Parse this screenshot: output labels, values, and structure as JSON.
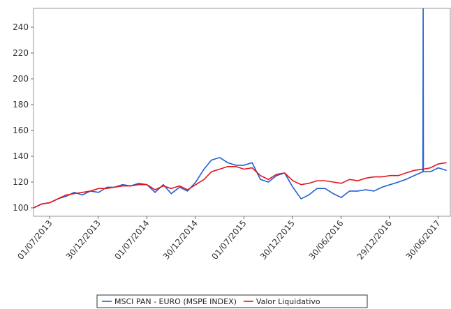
{
  "chart_data": {
    "type": "line",
    "x": [
      "01/05/2013",
      "01/06/2013",
      "01/07/2013",
      "01/08/2013",
      "01/09/2013",
      "01/10/2013",
      "01/11/2013",
      "01/12/2013",
      "01/01/2014",
      "01/02/2014",
      "01/03/2014",
      "01/04/2014",
      "01/05/2014",
      "01/06/2014",
      "01/07/2014",
      "01/08/2014",
      "01/09/2014",
      "01/10/2014",
      "01/11/2014",
      "01/12/2014",
      "01/01/2015",
      "01/02/2015",
      "01/03/2015",
      "01/04/2015",
      "01/05/2015",
      "01/06/2015",
      "01/07/2015",
      "01/08/2015",
      "01/09/2015",
      "01/10/2015",
      "01/11/2015",
      "01/12/2015",
      "01/01/2016",
      "01/02/2016",
      "01/03/2016",
      "01/04/2016",
      "01/05/2016",
      "01/06/2016",
      "01/07/2016",
      "01/08/2016",
      "01/09/2016",
      "01/10/2016",
      "01/11/2016",
      "01/12/2016",
      "01/01/2017",
      "01/02/2017",
      "01/03/2017",
      "01/04/2017",
      "04/05/2017",
      "05/05/2017",
      "06/05/2017",
      "01/06/2017",
      "01/07/2017",
      "01/08/2017"
    ],
    "series": [
      {
        "name": "MSCI PAN - EURO (MSPE INDEX)",
        "color": "#1f5fd6",
        "values": [
          100,
          103,
          104,
          107,
          109,
          112,
          110,
          113,
          112,
          116,
          116,
          118,
          117,
          119,
          118,
          112,
          118,
          111,
          116,
          113,
          120,
          130,
          137,
          139,
          135,
          133,
          133,
          135,
          122,
          120,
          125,
          127,
          116,
          107,
          110,
          115,
          115,
          111,
          108,
          113,
          113,
          114,
          113,
          116,
          118,
          120,
          122,
          125,
          128,
          255,
          128,
          128,
          131,
          129
        ]
      },
      {
        "name": "Valor Liquidativo",
        "color": "#e0161b",
        "values": [
          100,
          103,
          104,
          107,
          110,
          111,
          112,
          113,
          115,
          115,
          116,
          117,
          117,
          118,
          118,
          114,
          117,
          115,
          117,
          114,
          118,
          122,
          128,
          130,
          132,
          132,
          130,
          131,
          125,
          122,
          126,
          127,
          121,
          118,
          119,
          121,
          121,
          120,
          119,
          122,
          121,
          123,
          124,
          124,
          125,
          125,
          127,
          129,
          130,
          130,
          130,
          131,
          134,
          135
        ]
      }
    ],
    "xlim": [
      "01/05/2013",
      "15/08/2017"
    ],
    "xticks": [
      "01/07/2013",
      "30/12/2013",
      "01/07/2014",
      "30/12/2014",
      "01/07/2015",
      "30/12/2015",
      "30/06/2016",
      "29/12/2016",
      "30/06/2017"
    ],
    "ylim": [
      93.5,
      254.6
    ],
    "yticks": [
      100,
      120,
      140,
      160,
      180,
      200,
      220,
      240
    ],
    "grid": false
  }
}
